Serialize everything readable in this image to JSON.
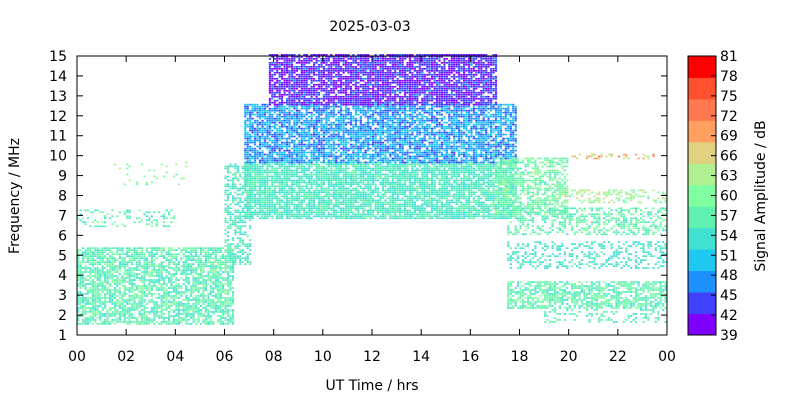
{
  "chart_data": {
    "type": "heatmap",
    "title": "2025-03-03",
    "xlabel": "UT Time / hrs",
    "ylabel": "Frequency / MHz",
    "colorbar_label": "Signal Amplitude / dB",
    "xlim": [
      0,
      24
    ],
    "ylim": [
      1,
      15
    ],
    "x_ticks": [
      "00",
      "02",
      "04",
      "06",
      "08",
      "10",
      "12",
      "14",
      "16",
      "18",
      "20",
      "22",
      "00"
    ],
    "y_ticks": [
      "1",
      "2",
      "3",
      "4",
      "5",
      "6",
      "7",
      "8",
      "9",
      "10",
      "11",
      "12",
      "13",
      "14",
      "15"
    ],
    "colorbar_ticks": [
      "39",
      "42",
      "45",
      "48",
      "51",
      "54",
      "57",
      "60",
      "63",
      "66",
      "69",
      "72",
      "75",
      "78",
      "81"
    ],
    "colorbar_range": [
      39,
      81
    ],
    "colorbar_colors": [
      "#8000ff",
      "#4040ff",
      "#1e90ff",
      "#1ec8f0",
      "#40e0d0",
      "#60f0b0",
      "#80ffa0",
      "#b0f090",
      "#e0d080",
      "#ffa060",
      "#ff7850",
      "#ff5030",
      "#ff0000"
    ],
    "grid": false,
    "regions": [
      {
        "t0": 0.0,
        "t1": 6.3,
        "f0": 1.5,
        "f1": 5.3,
        "a0": 53,
        "a1": 60,
        "density": 0.75
      },
      {
        "t0": 0.0,
        "t1": 4.0,
        "f0": 6.4,
        "f1": 7.2,
        "a0": 54,
        "a1": 60,
        "density": 0.25
      },
      {
        "t0": 1.5,
        "t1": 4.5,
        "f0": 8.5,
        "f1": 9.6,
        "a0": 58,
        "a1": 63,
        "density": 0.12
      },
      {
        "t0": 6.0,
        "t1": 7.0,
        "f0": 4.5,
        "f1": 9.5,
        "a0": 52,
        "a1": 58,
        "density": 0.55
      },
      {
        "t0": 6.8,
        "t1": 17.8,
        "f0": 6.8,
        "f1": 9.6,
        "a0": 52,
        "a1": 58,
        "density": 0.85
      },
      {
        "t0": 6.8,
        "t1": 17.8,
        "f0": 9.6,
        "f1": 12.5,
        "a0": 44,
        "a1": 52,
        "density": 0.8
      },
      {
        "t0": 7.8,
        "t1": 17.0,
        "f0": 12.5,
        "f1": 15.0,
        "a0": 39,
        "a1": 46,
        "density": 0.85
      },
      {
        "t0": 17.0,
        "t1": 20.0,
        "f0": 7.0,
        "f1": 9.8,
        "a0": 55,
        "a1": 62,
        "density": 0.6
      },
      {
        "t0": 17.5,
        "t1": 24.0,
        "f0": 2.3,
        "f1": 3.7,
        "a0": 54,
        "a1": 60,
        "density": 0.7
      },
      {
        "t0": 17.5,
        "t1": 24.0,
        "f0": 4.3,
        "f1": 5.6,
        "a0": 52,
        "a1": 56,
        "density": 0.35
      },
      {
        "t0": 17.5,
        "t1": 24.0,
        "f0": 6.0,
        "f1": 7.3,
        "a0": 54,
        "a1": 60,
        "density": 0.45
      },
      {
        "t0": 19.5,
        "t1": 24.0,
        "f0": 7.6,
        "f1": 8.2,
        "a0": 58,
        "a1": 66,
        "density": 0.4
      },
      {
        "t0": 19.0,
        "t1": 24.0,
        "f0": 1.6,
        "f1": 2.3,
        "a0": 54,
        "a1": 58,
        "density": 0.3
      },
      {
        "t0": 20.0,
        "t1": 23.5,
        "f0": 9.8,
        "f1": 10.1,
        "a0": 62,
        "a1": 72,
        "density": 0.3
      }
    ]
  }
}
